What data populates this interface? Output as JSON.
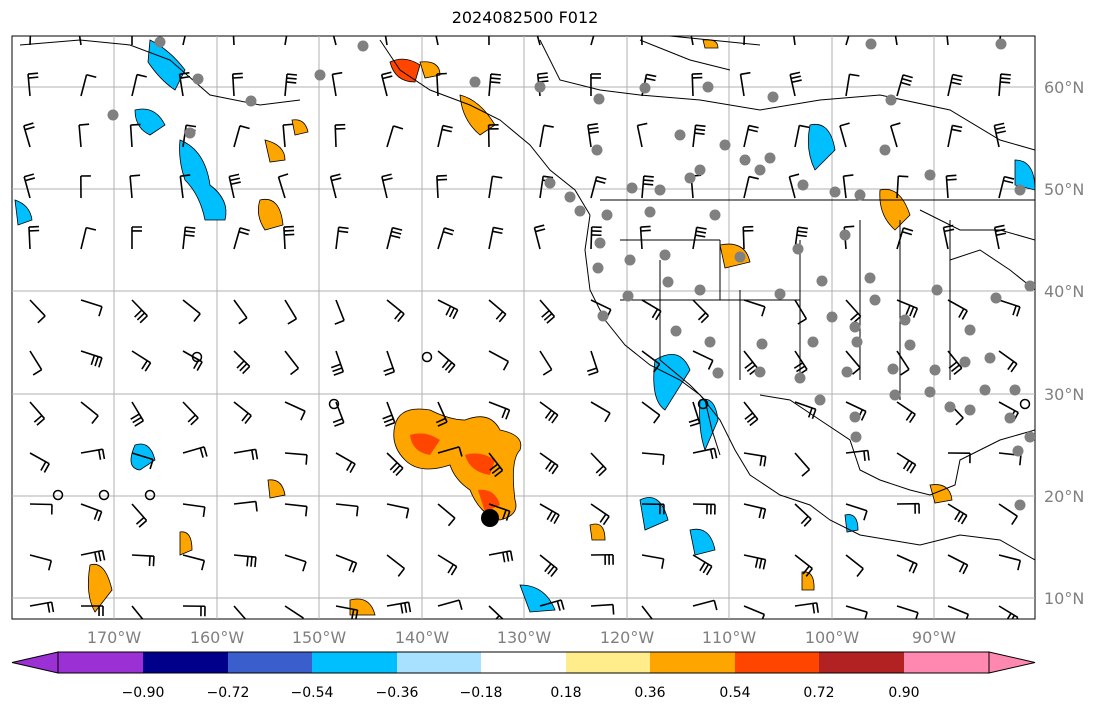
{
  "title": "2024082500 F012",
  "lat_labels": [
    "60°N",
    "50°N",
    "40°N",
    "30°N",
    "20°N",
    "10°N"
  ],
  "lon_labels": [
    "170°W",
    "160°W",
    "150°W",
    "140°W",
    "130°W",
    "120°W",
    "110°W",
    "100°W",
    "90°W"
  ],
  "colorbar": {
    "labels": [
      "−0.90",
      "−0.72",
      "−0.54",
      "−0.36",
      "−0.18",
      "0.18",
      "0.36",
      "0.54",
      "0.72",
      "0.90"
    ],
    "colors": [
      "#9b30d4",
      "#00008b",
      "#3a5fcd",
      "#00bfff",
      "#a8e0ff",
      "#ffffff",
      "#ffec8b",
      "#ffa500",
      "#ff4500",
      "#b22222",
      "#ff88b0"
    ]
  },
  "colors": {
    "gridline": "#b0b0b0",
    "coast": "#000000",
    "station_dot": "#808080",
    "neg_fill": "#00bfff",
    "neg_light": "#a8e0ff",
    "pos_fill": "#ffa500",
    "pos_strong": "#ff4500",
    "pos_light": "#ffec8b"
  }
}
